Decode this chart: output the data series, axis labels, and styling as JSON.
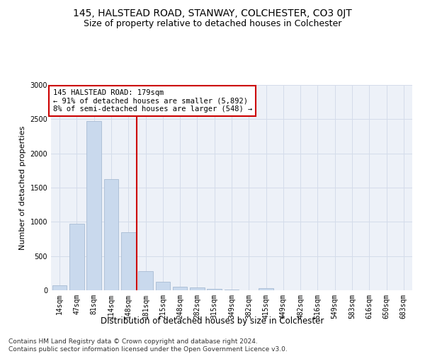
{
  "title": "145, HALSTEAD ROAD, STANWAY, COLCHESTER, CO3 0JT",
  "subtitle": "Size of property relative to detached houses in Colchester",
  "xlabel": "Distribution of detached houses by size in Colchester",
  "ylabel": "Number of detached properties",
  "categories": [
    "14sqm",
    "47sqm",
    "81sqm",
    "114sqm",
    "148sqm",
    "181sqm",
    "215sqm",
    "248sqm",
    "282sqm",
    "315sqm",
    "349sqm",
    "382sqm",
    "415sqm",
    "449sqm",
    "482sqm",
    "516sqm",
    "549sqm",
    "583sqm",
    "616sqm",
    "650sqm",
    "683sqm"
  ],
  "values": [
    75,
    975,
    2475,
    1625,
    850,
    275,
    125,
    50,
    40,
    25,
    15,
    0,
    35,
    0,
    0,
    0,
    0,
    0,
    0,
    0,
    0
  ],
  "bar_color": "#c9d9ed",
  "bar_edgecolor": "#a8bcd4",
  "vline_color": "#cc0000",
  "annotation_line1": "145 HALSTEAD ROAD: 179sqm",
  "annotation_line2": "← 91% of detached houses are smaller (5,892)",
  "annotation_line3": "8% of semi-detached houses are larger (548) →",
  "annotation_box_color": "#ffffff",
  "annotation_box_edgecolor": "#cc0000",
  "ylim": [
    0,
    3000
  ],
  "yticks": [
    0,
    500,
    1000,
    1500,
    2000,
    2500,
    3000
  ],
  "grid_color": "#d4dcea",
  "bg_color": "#edf1f8",
  "footer_line1": "Contains HM Land Registry data © Crown copyright and database right 2024.",
  "footer_line2": "Contains public sector information licensed under the Open Government Licence v3.0.",
  "title_fontsize": 10,
  "subtitle_fontsize": 9,
  "xlabel_fontsize": 8.5,
  "ylabel_fontsize": 8,
  "tick_fontsize": 7,
  "footer_fontsize": 6.5,
  "annot_fontsize": 7.5
}
